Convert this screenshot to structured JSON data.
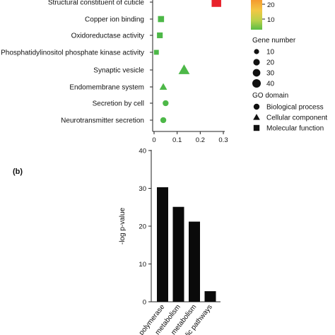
{
  "panel_labels": {
    "b": "(b)"
  },
  "chart_data": [
    {
      "type": "scatter",
      "categories": [
        "Structural constituent of cuticle",
        "Copper ion binding",
        "Oxidoreductase activity",
        "Phosphatidylinositol phosphate kinase activity",
        "Synaptic vesicle",
        "Endomembrane system",
        "Secretion by cell",
        "Neurotransmitter secretion"
      ],
      "x_values": [
        0.27,
        0.03,
        0.025,
        0.01,
        0.13,
        0.04,
        0.05,
        0.04
      ],
      "gene_numbers": [
        40,
        12,
        10,
        6,
        32,
        11,
        8,
        8
      ],
      "go_domain": [
        "Molecular function",
        "Molecular function",
        "Molecular function",
        "Molecular function",
        "Cellular component",
        "Cellular component",
        "Biological process",
        "Biological process"
      ],
      "colors": [
        "#e8222b",
        "#4db848",
        "#4db848",
        "#4db848",
        "#4db848",
        "#4db848",
        "#4db848",
        "#4db848"
      ],
      "xticks": [
        "0",
        "0.1",
        "0.2",
        "0.3"
      ],
      "xlim": [
        0,
        0.3
      ],
      "colorbar_ticks": [
        "20",
        "10"
      ],
      "colorbar_gradient": [
        "#f59a2e",
        "#f2c744",
        "#b7d14a",
        "#5bbd45"
      ],
      "legend_size": {
        "title": "Gene number",
        "labels": [
          "10",
          "20",
          "30",
          "40"
        ]
      },
      "legend_domain": {
        "title": "GO domain",
        "items": [
          {
            "shape": "circle",
            "label": "Biological process"
          },
          {
            "shape": "triangle",
            "label": "Cellular component"
          },
          {
            "shape": "square",
            "label": "Molecular function"
          }
        ]
      }
    },
    {
      "type": "bar",
      "categories": [
        "RNA polymerase",
        "metabolism",
        "metabolism",
        "Metabolic pathways"
      ],
      "category_labels": [
        "polymerase",
        "metabolism",
        "metabolism",
        "lic pathways"
      ],
      "values": [
        30.3,
        25.1,
        21.2,
        2.8
      ],
      "ylabel": "-log p-value",
      "yticks": [
        "0",
        "10",
        "20",
        "30",
        "40"
      ],
      "ylim": [
        0,
        40
      ],
      "bar_color": "#0a0a0a"
    }
  ]
}
